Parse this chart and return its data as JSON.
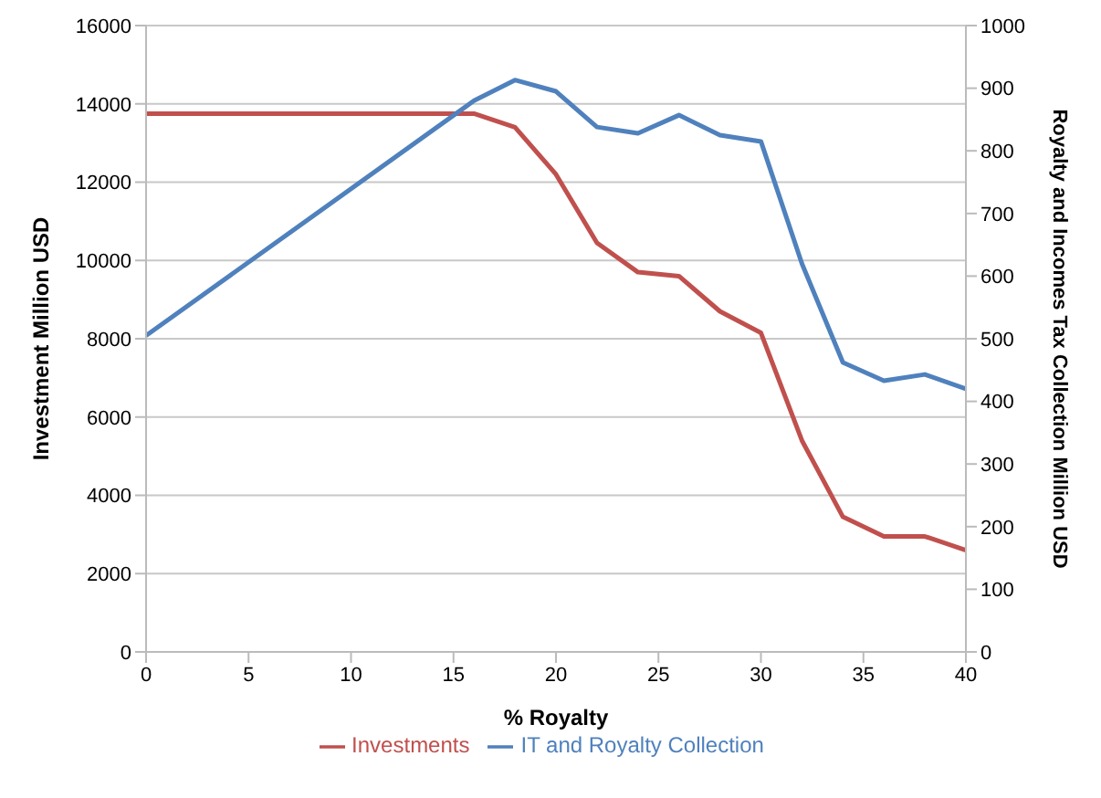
{
  "chart_data": {
    "type": "line",
    "xlabel": "% Royalty",
    "ylabel": "Investment Million USD",
    "y2label": "Royalty and Incomes Tax Collection Million USD",
    "series": [
      {
        "name": "Investments",
        "color": "#c0504d",
        "x": [
          0,
          16,
          18,
          20,
          22,
          24,
          26,
          28,
          30,
          32,
          34,
          36,
          38,
          40
        ],
        "values": [
          13750,
          13750,
          13400,
          12200,
          10450,
          9700,
          9600,
          8700,
          8150,
          5400,
          3450,
          2950,
          2950,
          2600
        ]
      },
      {
        "name": "IT and Royalty Collection",
        "color": "#4f81bd",
        "axis": "y2",
        "x": [
          0,
          16,
          18,
          20,
          22,
          24,
          26,
          28,
          30,
          32,
          34,
          36,
          38,
          40
        ],
        "values": [
          505,
          880,
          913,
          895,
          838,
          828,
          857,
          825,
          815,
          620,
          462,
          433,
          443,
          420
        ]
      }
    ],
    "xlim": [
      0,
      40
    ],
    "xticks": [
      0,
      5,
      10,
      15,
      20,
      25,
      30,
      35,
      40
    ],
    "ylim": [
      0,
      16000
    ],
    "yticks": [
      0,
      2000,
      4000,
      6000,
      8000,
      10000,
      12000,
      14000,
      16000
    ],
    "y2lim": [
      0,
      1000
    ],
    "y2ticks": [
      0,
      100,
      200,
      300,
      400,
      500,
      600,
      700,
      800,
      900,
      1000
    ],
    "grid": "y",
    "legend": "bottom",
    "marker": "none",
    "line_style": "solid"
  }
}
